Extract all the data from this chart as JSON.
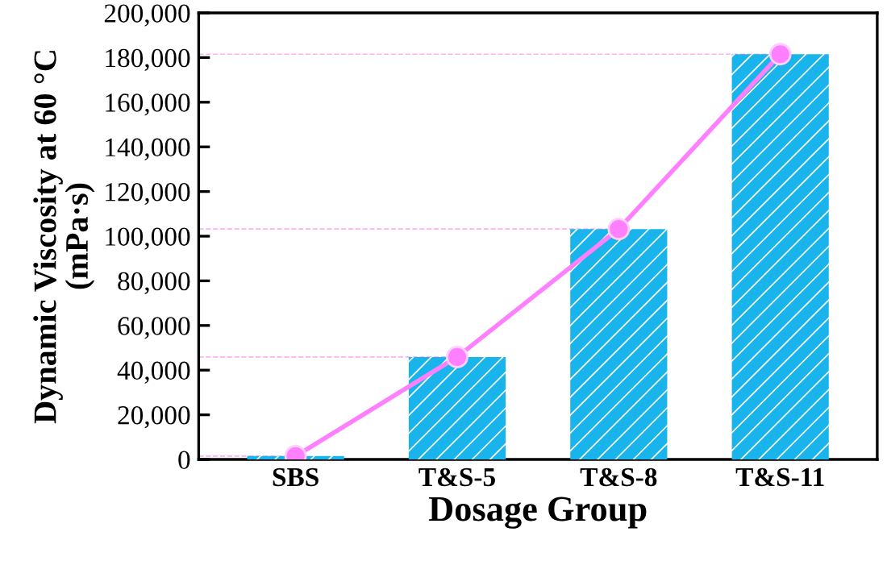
{
  "chart_data": {
    "type": "bar",
    "xlabel": "Dosage Group",
    "ylabel": "Dynamic Viscosity at 60 °C\n(mPa·s)",
    "categories": [
      "SBS",
      "T&S-5",
      "T&S-8",
      "T&S-11"
    ],
    "series": [
      {
        "color": "#1ab4ec",
        "values": [
          1500,
          45900,
          103200,
          181500
        ]
      },
      {
        "type": "line",
        "color": "#ff80ff",
        "marker": "circle",
        "line_style": "solid",
        "values": [
          1500,
          45900,
          103200,
          181500
        ]
      }
    ],
    "ylim": [
      0,
      200000
    ],
    "yticks": [
      {
        "value": 0,
        "label": "0"
      },
      {
        "value": 20000,
        "label": "20,000"
      },
      {
        "value": 40000,
        "label": "40,000"
      },
      {
        "value": 60000,
        "label": "60,000"
      },
      {
        "value": 80000,
        "label": "80,000"
      },
      {
        "value": 100000,
        "label": "100,000"
      },
      {
        "value": 120000,
        "label": "120,000"
      },
      {
        "value": 140000,
        "label": "140,000"
      },
      {
        "value": 160000,
        "label": "160,000"
      },
      {
        "value": 180000,
        "label": "180,000"
      },
      {
        "value": 200000,
        "label": "200,000"
      }
    ],
    "ref_lines": [
      {
        "axis": "y",
        "value": 1500,
        "color": "#ffb0f0",
        "line_style": "dashed"
      },
      {
        "axis": "y",
        "value": 45900,
        "color": "#ffb0f0",
        "line_style": "dashed"
      },
      {
        "axis": "y",
        "value": 103200,
        "color": "#ffb0f0",
        "line_style": "dashed"
      },
      {
        "axis": "y",
        "value": 181500,
        "color": "#ffb0f0",
        "line_style": "dashed"
      }
    ],
    "grid": false,
    "legend": false
  }
}
